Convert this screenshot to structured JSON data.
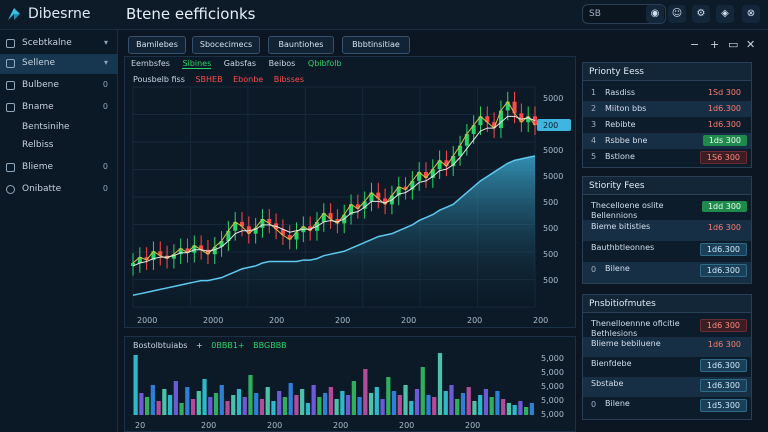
{
  "app": {
    "title": "Dibesrne",
    "page_title": "Btene eefficionks"
  },
  "topbar": {
    "search_value": "SB",
    "icons": [
      "bell-icon",
      "user-icon",
      "settings-icon",
      "close-icon"
    ]
  },
  "sidebar": {
    "items": [
      {
        "label": "Scebtkalne",
        "meta": "▾",
        "icon": "box-icon"
      },
      {
        "label": "Sellene",
        "meta": "▾",
        "icon": "box-icon",
        "active": true
      },
      {
        "label": "Bulbene",
        "meta": "0",
        "icon": "box-icon"
      },
      {
        "label": "Bname",
        "meta": "0",
        "icon": "box-icon"
      },
      {
        "label": "Bentsinihe",
        "meta": "",
        "icon": ""
      },
      {
        "label": "Relbiss",
        "meta": "",
        "icon": ""
      },
      {
        "label": "Blieme",
        "meta": "0",
        "icon": "box-icon"
      },
      {
        "label": "Onibatte",
        "meta": "0",
        "icon": "clock-icon"
      }
    ]
  },
  "tabs": [
    {
      "label": "Bamilebes"
    },
    {
      "label": "Sbocecimecs"
    },
    {
      "label": "Bauntiohes"
    },
    {
      "label": "Bbbtinsitiae"
    }
  ],
  "window_controls": [
    "−",
    "+",
    "▭",
    "✕"
  ],
  "chart": {
    "legend_top": [
      "Eembsfes",
      "Sibines",
      "Gabsfas",
      "Beibos",
      "Qbibfolb"
    ],
    "legend_sub": [
      "Pousbelb fiss",
      "SBHEB",
      "Ebonbe",
      "Bibsses"
    ],
    "x_ticks": [
      "2000",
      "2000",
      "200",
      "200",
      "200",
      "200",
      "200"
    ],
    "y_ticks": [
      "5000",
      "5000",
      "5000",
      "5000",
      "500",
      "500",
      "500",
      "500"
    ],
    "indicator": "200"
  },
  "chart_data": {
    "type": "line",
    "x": [
      0,
      1,
      2,
      3,
      4,
      5,
      6,
      7,
      8,
      9,
      10,
      11,
      12,
      13,
      14,
      15,
      16,
      17,
      18,
      19,
      20,
      21,
      22,
      23,
      24,
      25,
      26,
      27,
      28,
      29,
      30,
      31,
      32,
      33,
      34,
      35,
      36,
      37,
      38,
      39,
      40,
      41,
      42,
      43,
      44,
      45,
      46,
      47,
      48,
      49,
      50,
      51,
      52,
      53,
      54,
      55,
      56,
      57,
      58,
      59
    ],
    "series": [
      {
        "values": [
          30,
          34,
          32,
          38,
          35,
          33,
          36,
          40,
          37,
          42,
          39,
          36,
          41,
          45,
          52,
          58,
          55,
          50,
          54,
          60,
          57,
          53,
          49,
          46,
          51,
          55,
          52,
          58,
          64,
          60,
          57,
          63,
          70,
          67,
          72,
          78,
          74,
          70,
          76,
          82,
          80,
          86,
          92,
          88,
          94,
          100,
          96,
          103,
          110,
          118,
          124,
          130,
          126,
          122,
          134,
          140,
          132,
          126,
          130,
          124
        ]
      },
      {
        "values": [
          28,
          30,
          31,
          33,
          34,
          34,
          35,
          37,
          37,
          39,
          39,
          38,
          39,
          41,
          45,
          50,
          52,
          52,
          53,
          56,
          56,
          55,
          53,
          51,
          52,
          53,
          53,
          55,
          58,
          59,
          58,
          60,
          64,
          65,
          68,
          72,
          72,
          71,
          73,
          77,
          78,
          81,
          85,
          86,
          89,
          93,
          94,
          97,
          102,
          108,
          114,
          120,
          122,
          122,
          126,
          130,
          130,
          128,
          129,
          127
        ]
      },
      {
        "values": [
          26,
          27,
          28,
          29,
          30,
          31,
          32,
          33,
          34,
          35,
          36,
          36,
          37,
          38,
          40,
          42,
          44,
          45,
          46,
          48,
          49,
          49,
          49,
          49,
          49,
          50,
          50,
          51,
          53,
          54,
          55,
          56,
          58,
          60,
          62,
          64,
          66,
          67,
          68,
          70,
          72,
          74,
          77,
          79,
          81,
          84,
          86,
          88,
          92,
          96,
          100,
          104,
          107,
          110,
          113,
          116,
          118,
          119,
          120,
          121
        ]
      }
    ],
    "ylim": [
      0,
      150
    ],
    "grid": true
  },
  "volume": {
    "legend": [
      "Bostolbtuiabs",
      "+",
      "0BBB1+",
      "BBGBBB"
    ],
    "y_ticks": [
      "5,000",
      "5,000",
      "5,000",
      "5,000",
      "5,000"
    ],
    "x_ticks": [
      "20",
      "200",
      "200",
      "200",
      "200",
      "200"
    ]
  },
  "volume_data": {
    "type": "bar",
    "values": [
      60,
      22,
      18,
      30,
      14,
      26,
      20,
      34,
      12,
      28,
      16,
      24,
      36,
      18,
      22,
      30,
      14,
      20,
      26,
      18,
      40,
      22,
      16,
      28,
      14,
      24,
      18,
      32,
      20,
      26,
      12,
      30,
      18,
      22,
      28,
      16,
      24,
      20,
      34,
      18,
      46,
      22,
      28,
      16,
      38,
      24,
      20,
      30,
      14,
      26,
      48,
      20,
      18,
      62,
      24,
      30,
      16,
      22,
      28,
      14,
      20,
      26,
      18,
      24,
      16,
      12,
      10,
      14,
      8,
      12
    ],
    "colors": [
      "#2fb8c9",
      "#6d5ad6",
      "#2fae5e",
      "#2f7fd6",
      "#b44a9c",
      "#4bc2a8"
    ]
  },
  "priority_fees": {
    "title": "Prionty Eess",
    "rows": [
      {
        "num": "1",
        "name": "Rasdiss",
        "value": "1Sd 300",
        "style": "plain"
      },
      {
        "num": "2",
        "name": "Miiton bbs",
        "value": "1d6.300",
        "style": "plain"
      },
      {
        "num": "3",
        "name": "Rebibte",
        "value": "1d6.300",
        "style": "plain"
      },
      {
        "num": "4",
        "name": "Rsbbe bne",
        "value": "1ds 300",
        "style": "green"
      },
      {
        "num": "5",
        "name": "Bstlone",
        "value": "1S6 300",
        "style": "red"
      }
    ]
  },
  "stority_fees": {
    "title": "Stiority Fees",
    "rows": [
      {
        "name": "Thecelloene oslite Bellennions",
        "value": "1dd 300",
        "style": "green"
      },
      {
        "name": "Bieme bitisties",
        "value": "1d6 300",
        "style": "plain"
      },
      {
        "name": "Bauthbtleonnes",
        "value": "1d6.300",
        "style": "blue"
      },
      {
        "name": "Bilene",
        "value": "1d6.300",
        "style": "blue",
        "num": "0"
      }
    ]
  },
  "presbitis": {
    "title": "Pnsbitiofmutes",
    "rows": [
      {
        "name": "Thenelloennne oficitie Bethlesions",
        "value": "1d6 300",
        "style": "red"
      },
      {
        "name": "Blieme bebiluene",
        "value": "1d6 300",
        "style": "plain"
      },
      {
        "name": "Bienfdebe",
        "value": "1d6.300",
        "style": "blue"
      },
      {
        "name": "Sbstabe",
        "value": "1d6.300",
        "style": "blue"
      },
      {
        "name": "Bilene",
        "value": "1d5.300",
        "style": "blue",
        "num": "0"
      }
    ]
  },
  "colors": {
    "bg": "#0b1622",
    "up": "#2bd46a",
    "down": "#ff4a4a",
    "accent": "#3fb6e0"
  }
}
